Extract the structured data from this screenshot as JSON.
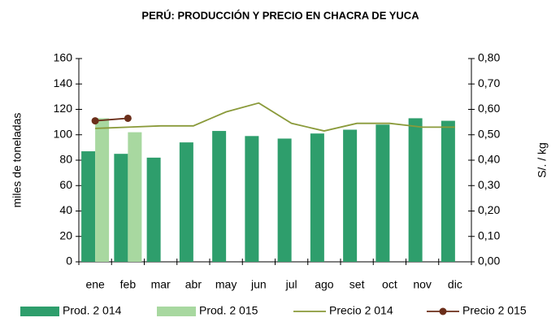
{
  "chart_data": {
    "type": "bar_line",
    "title": "PERÚ: PRODUCCIÓN Y PRECIO EN CHACRA DE YUCA",
    "y_label": "miles de toneladas",
    "y2_label": "S/. / kg",
    "categories": [
      "ene",
      "feb",
      "mar",
      "abr",
      "may",
      "jun",
      "jul",
      "ago",
      "set",
      "oct",
      "nov",
      "dic"
    ],
    "series": [
      {
        "name": "Prod. 2 014",
        "type": "bar",
        "color": "#2e9e6c",
        "values": [
          87,
          85,
          82,
          94,
          103,
          99,
          97,
          101,
          104,
          108,
          113,
          111
        ]
      },
      {
        "name": "Prod. 2 015",
        "type": "bar",
        "color": "#a8d8a0",
        "values": [
          113,
          102,
          null,
          null,
          null,
          null,
          null,
          null,
          null,
          null,
          null,
          null
        ]
      },
      {
        "name": "Precio 2 014",
        "type": "line",
        "axis": "y2",
        "color": "#8a9a3a",
        "values": [
          0.525,
          0.53,
          0.535,
          0.535,
          0.59,
          0.625,
          0.545,
          0.515,
          0.545,
          0.545,
          0.53,
          0.53
        ]
      },
      {
        "name": "Precio 2 015",
        "type": "line",
        "axis": "y2",
        "marker": true,
        "color": "#6b2e1a",
        "values": [
          0.555,
          0.565,
          null,
          null,
          null,
          null,
          null,
          null,
          null,
          null,
          null,
          null
        ]
      }
    ],
    "ylim": [
      0,
      160
    ],
    "yticks": [
      0,
      20,
      40,
      60,
      80,
      100,
      120,
      140,
      160
    ],
    "y2lim": [
      0,
      0.8
    ],
    "y2ticks": [
      {
        "value": 0,
        "label": "0,00"
      },
      {
        "value": 0.1,
        "label": "0,10"
      },
      {
        "value": 0.2,
        "label": "0,20"
      },
      {
        "value": 0.3,
        "label": "0,30"
      },
      {
        "value": 0.4,
        "label": "0,40"
      },
      {
        "value": 0.5,
        "label": "0,50"
      },
      {
        "value": 0.6,
        "label": "0,60"
      },
      {
        "value": 0.7,
        "label": "0,70"
      },
      {
        "value": 0.8,
        "label": "0,80"
      }
    ],
    "legend": "bottom"
  }
}
